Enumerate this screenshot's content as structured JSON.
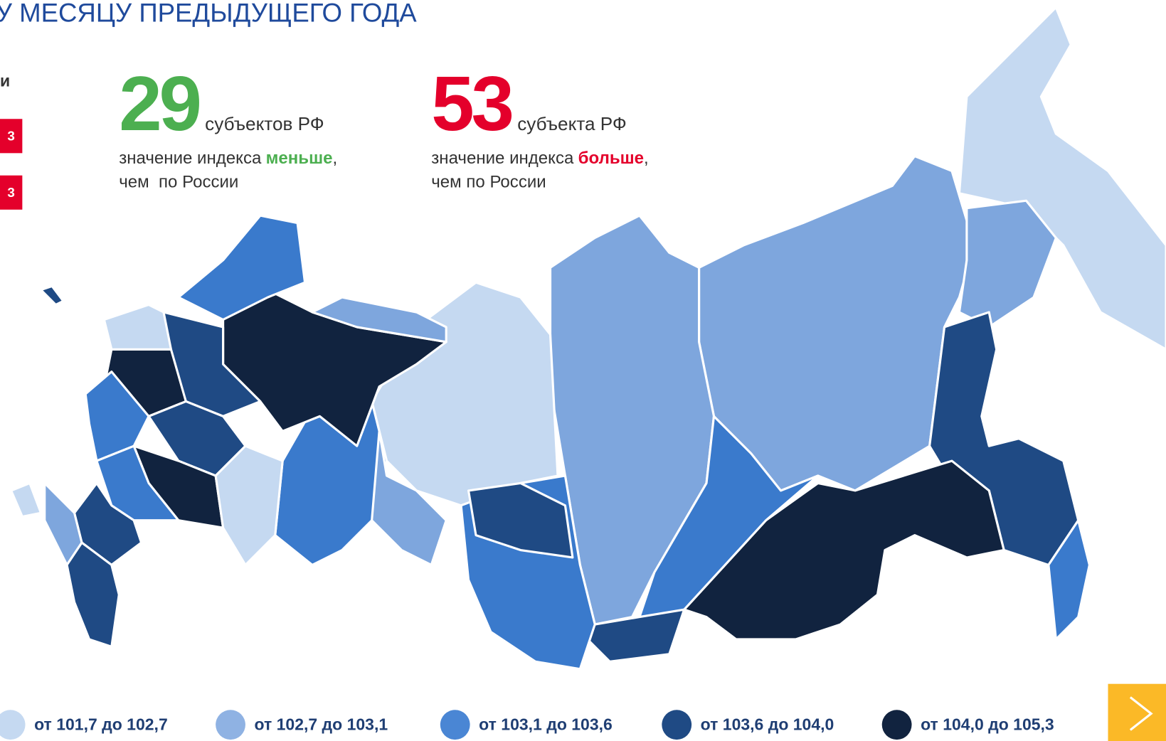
{
  "header": {
    "title": "У МЕСЯЦУ ПРЕДЫДУЩЕГО ГОДА"
  },
  "side": {
    "heading": "и",
    "badges": [
      "3",
      "3"
    ]
  },
  "stats": [
    {
      "number": "29",
      "unit": "субъектов РФ",
      "prefix": "значение индекса",
      "emphasis": "меньше",
      "suffix": ",",
      "line2": "чем  по России"
    },
    {
      "number": "53",
      "unit": "субъекта РФ",
      "prefix": "значение индекса",
      "emphasis": "больше",
      "suffix": ",",
      "line2": "чем по России"
    }
  ],
  "legend": [
    "от 101,7 до 102,7",
    "от 102,7 до 103,1",
    "от 103,1 до 103,6",
    "от 103,6 до 104,0",
    "от 104,0 до 105,3"
  ]
}
